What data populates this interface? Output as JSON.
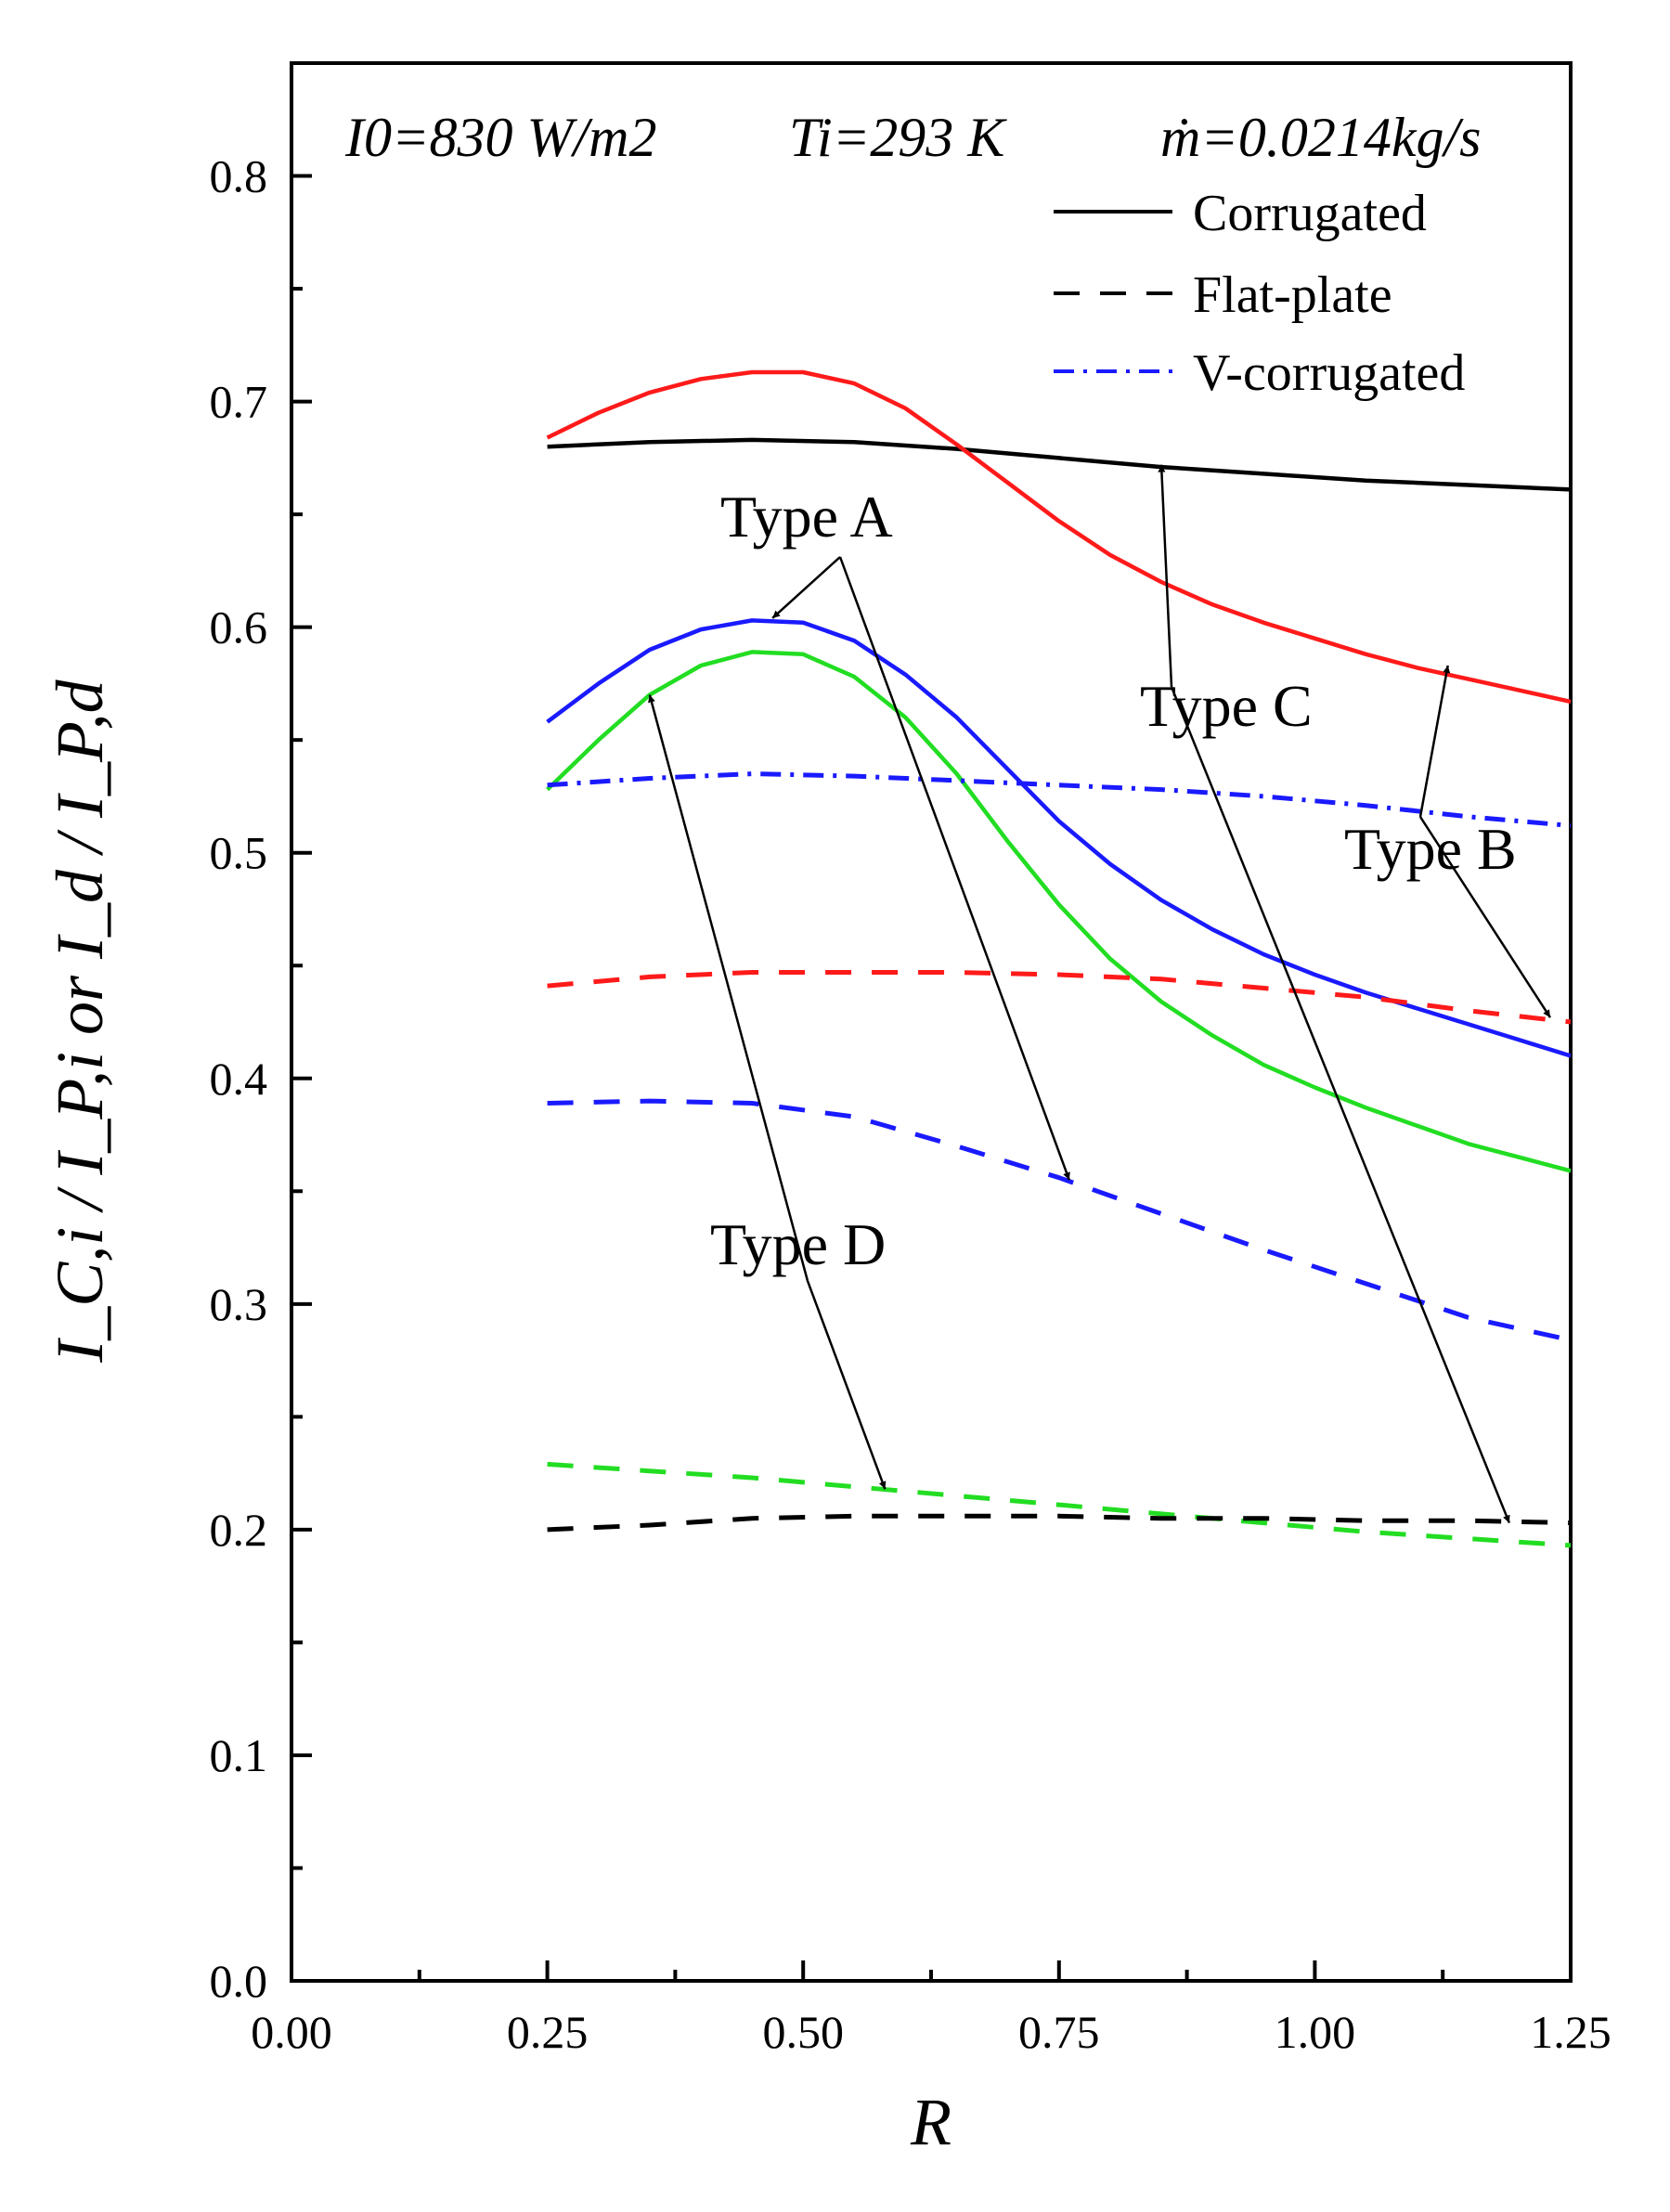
{
  "chart_data": {
    "type": "line",
    "title": "",
    "xlabel": "R",
    "ylabel": "I_C,i / I_P,i or I_d / I_P,d",
    "xlim": [
      0.0,
      1.25
    ],
    "ylim": [
      0.0,
      0.85
    ],
    "grid": false,
    "x_ticks": [
      "0.00",
      "0.25",
      "0.50",
      "0.75",
      "1.00",
      "1.25"
    ],
    "y_ticks": [
      "0.0",
      "0.1",
      "0.2",
      "0.3",
      "0.4",
      "0.5",
      "0.6",
      "0.7",
      "0.8"
    ],
    "conditions": {
      "irradiance": "I0=830 W/m2",
      "inlet_temp": "Ti=293 K",
      "mass_flow": "ṁ=0.0214kg/s"
    },
    "legend": {
      "position": "top-right",
      "entries": [
        {
          "label": "Corrugated",
          "style": "solid",
          "color": "#000000"
        },
        {
          "label": "Flat-plate",
          "style": "dashed",
          "color": "#000000"
        },
        {
          "label": "V-corrugated",
          "style": "dashdot",
          "color": "#1a1aff"
        }
      ]
    },
    "series": [
      {
        "name": "Type C corrugated",
        "color": "#000000",
        "style": "solid",
        "x": [
          0.25,
          0.35,
          0.45,
          0.55,
          0.65,
          0.75,
          0.85,
          0.95,
          1.05,
          1.15,
          1.25
        ],
        "y": [
          0.68,
          0.682,
          0.683,
          0.682,
          0.679,
          0.675,
          0.671,
          0.668,
          0.665,
          0.663,
          0.661
        ]
      },
      {
        "name": "Type B corrugated",
        "color": "#ff1a1a",
        "style": "solid",
        "x": [
          0.25,
          0.3,
          0.35,
          0.4,
          0.45,
          0.5,
          0.55,
          0.6,
          0.65,
          0.7,
          0.75,
          0.8,
          0.85,
          0.9,
          0.95,
          1.0,
          1.05,
          1.1,
          1.15,
          1.2,
          1.25
        ],
        "y": [
          0.684,
          0.695,
          0.704,
          0.71,
          0.713,
          0.713,
          0.708,
          0.697,
          0.681,
          0.664,
          0.647,
          0.632,
          0.62,
          0.61,
          0.602,
          0.595,
          0.588,
          0.582,
          0.577,
          0.572,
          0.567
        ]
      },
      {
        "name": "Type A corrugated",
        "color": "#1a1aff",
        "style": "solid",
        "x": [
          0.25,
          0.3,
          0.35,
          0.4,
          0.45,
          0.5,
          0.55,
          0.6,
          0.65,
          0.7,
          0.75,
          0.8,
          0.85,
          0.9,
          0.95,
          1.0,
          1.05,
          1.1,
          1.15,
          1.2,
          1.25
        ],
        "y": [
          0.558,
          0.575,
          0.59,
          0.599,
          0.603,
          0.602,
          0.594,
          0.579,
          0.56,
          0.537,
          0.514,
          0.495,
          0.479,
          0.466,
          0.455,
          0.446,
          0.438,
          0.431,
          0.424,
          0.417,
          0.41
        ]
      },
      {
        "name": "Type D corrugated",
        "color": "#22dd22",
        "style": "solid",
        "x": [
          0.25,
          0.3,
          0.35,
          0.4,
          0.45,
          0.5,
          0.55,
          0.6,
          0.65,
          0.7,
          0.75,
          0.8,
          0.85,
          0.9,
          0.95,
          1.0,
          1.05,
          1.1,
          1.15,
          1.2,
          1.25
        ],
        "y": [
          0.528,
          0.55,
          0.57,
          0.583,
          0.589,
          0.588,
          0.578,
          0.56,
          0.535,
          0.505,
          0.477,
          0.453,
          0.434,
          0.419,
          0.406,
          0.396,
          0.387,
          0.379,
          0.371,
          0.365,
          0.359
        ]
      },
      {
        "name": "Type A V-corrugated",
        "color": "#1a1aff",
        "style": "dashdot",
        "x": [
          0.25,
          0.35,
          0.45,
          0.55,
          0.65,
          0.75,
          0.85,
          0.95,
          1.05,
          1.15,
          1.25
        ],
        "y": [
          0.53,
          0.533,
          0.535,
          0.534,
          0.532,
          0.53,
          0.528,
          0.525,
          0.521,
          0.516,
          0.512
        ]
      },
      {
        "name": "Type B flat-plate",
        "color": "#ff1a1a",
        "style": "dashed",
        "x": [
          0.25,
          0.35,
          0.45,
          0.55,
          0.65,
          0.75,
          0.85,
          0.95,
          1.05,
          1.15,
          1.25
        ],
        "y": [
          0.441,
          0.445,
          0.447,
          0.447,
          0.447,
          0.446,
          0.444,
          0.44,
          0.436,
          0.43,
          0.425
        ]
      },
      {
        "name": "Type A flat-plate",
        "color": "#1a1aff",
        "style": "dashed",
        "x": [
          0.25,
          0.35,
          0.45,
          0.55,
          0.65,
          0.75,
          0.85,
          0.95,
          1.05,
          1.15,
          1.25
        ],
        "y": [
          0.389,
          0.39,
          0.389,
          0.383,
          0.37,
          0.356,
          0.34,
          0.324,
          0.309,
          0.294,
          0.284
        ]
      },
      {
        "name": "Type D flat-plate",
        "color": "#22dd22",
        "style": "dashed",
        "x": [
          0.25,
          0.35,
          0.45,
          0.55,
          0.65,
          0.75,
          0.85,
          0.95,
          1.05,
          1.15,
          1.25
        ],
        "y": [
          0.229,
          0.226,
          0.223,
          0.219,
          0.215,
          0.211,
          0.207,
          0.203,
          0.199,
          0.196,
          0.193
        ]
      },
      {
        "name": "Type C flat-plate",
        "color": "#000000",
        "style": "dashed",
        "x": [
          0.25,
          0.35,
          0.45,
          0.55,
          0.65,
          0.75,
          0.85,
          0.95,
          1.05,
          1.15,
          1.25
        ],
        "y": [
          0.2,
          0.202,
          0.205,
          0.206,
          0.206,
          0.206,
          0.205,
          0.205,
          0.204,
          0.204,
          0.203
        ]
      }
    ],
    "annotations": [
      {
        "label": "Type A",
        "arrows_to": [
          [
            0.47,
            0.604
          ],
          [
            0.76,
            0.355
          ]
        ]
      },
      {
        "label": "Type B",
        "arrows_to": [
          [
            1.13,
            0.583
          ],
          [
            1.23,
            0.427
          ]
        ]
      },
      {
        "label": "Type C",
        "arrows_to": [
          [
            0.85,
            0.672
          ],
          [
            1.19,
            0.203
          ]
        ]
      },
      {
        "label": "Type D",
        "arrows_to": [
          [
            0.35,
            0.57
          ],
          [
            0.58,
            0.218
          ]
        ]
      }
    ]
  }
}
